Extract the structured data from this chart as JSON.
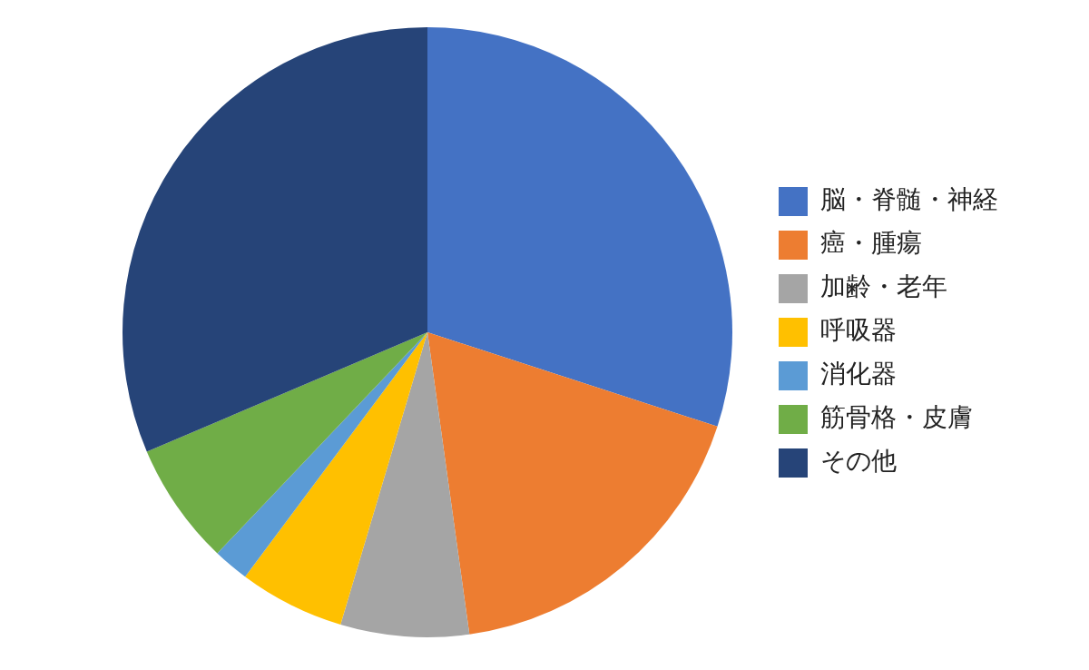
{
  "chart_data": {
    "type": "pie",
    "categories": [
      "脳・脊髄・神経",
      "癌・腫瘍",
      "加齢・老年",
      "呼吸器",
      "消化器",
      "筋骨格・皮膚",
      "その他"
    ],
    "values": [
      30,
      17.8,
      6.8,
      5.6,
      1.9,
      6.5,
      31.4
    ],
    "colors": [
      "#4472c4",
      "#ed7d31",
      "#a5a5a5",
      "#ffc000",
      "#5b9bd5",
      "#70ad47",
      "#264478"
    ],
    "legend": "right"
  }
}
